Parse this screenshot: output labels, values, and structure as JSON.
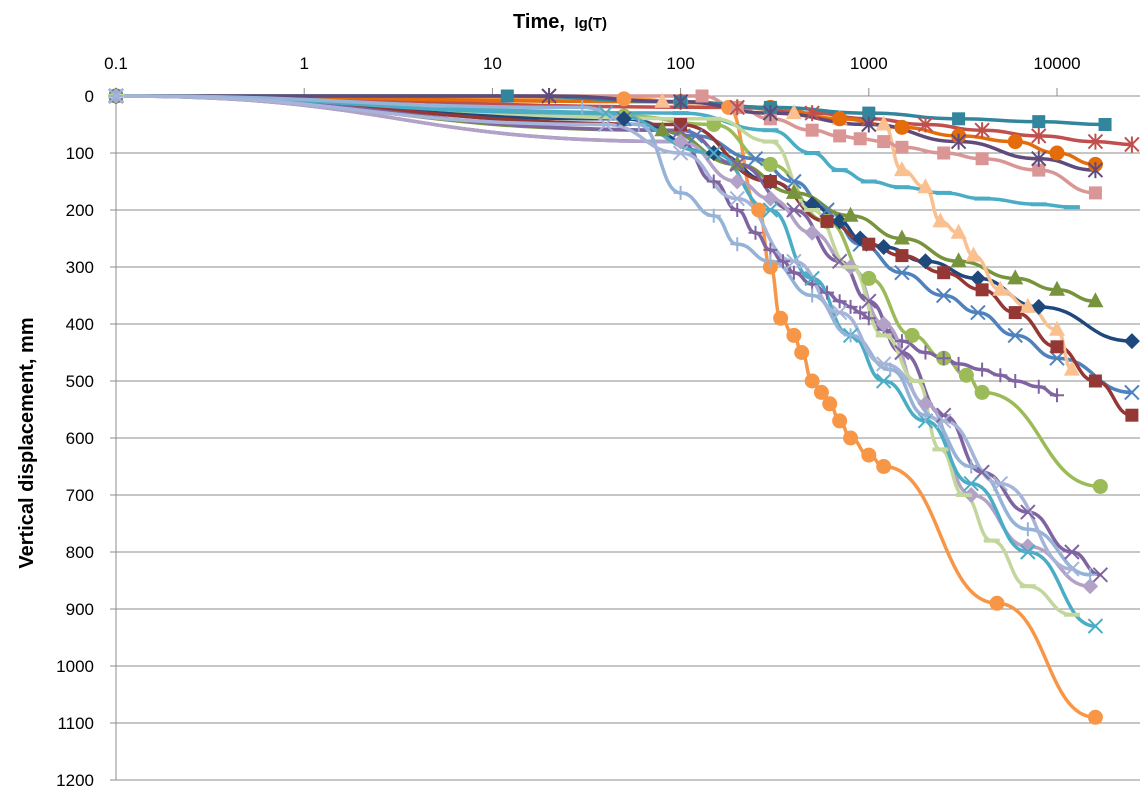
{
  "chart_data": {
    "type": "line",
    "x_scale": "log",
    "x_axis_position": "top",
    "y_inverted": true,
    "xlabel": "Time,",
    "xlabel_suffix": "lg(T)",
    "ylabel": "Vertical displacement, mm",
    "xlim": [
      0.1,
      25000
    ],
    "ylim": [
      0,
      1200
    ],
    "x_ticks": [
      "0.1",
      "1",
      "10",
      "100",
      "1000",
      "10000"
    ],
    "x_tick_values": [
      0.1,
      1,
      10,
      100,
      1000,
      10000
    ],
    "y_ticks": [
      "0",
      "100",
      "200",
      "300",
      "400",
      "500",
      "600",
      "700",
      "800",
      "900",
      "1000",
      "1100",
      "1200"
    ],
    "y_tick_values": [
      0,
      100,
      200,
      300,
      400,
      500,
      600,
      700,
      800,
      900,
      1000,
      1100,
      1200
    ],
    "grid": "horizontal",
    "legend": "none",
    "series": [
      {
        "color": "#f79646",
        "marker": "circle",
        "x": [
          0.1,
          50,
          180,
          260,
          300,
          340,
          400,
          440,
          500,
          560,
          620,
          700,
          800,
          1000,
          1200,
          4800,
          16000
        ],
        "y": [
          0,
          5,
          20,
          200,
          300,
          390,
          420,
          450,
          500,
          520,
          540,
          570,
          600,
          630,
          650,
          890,
          1090
        ]
      },
      {
        "color": "#9bbb59",
        "marker": "circle",
        "x": [
          0.1,
          50,
          150,
          300,
          600,
          1000,
          1700,
          2500,
          3300,
          4000,
          17000
        ],
        "y": [
          0,
          35,
          50,
          120,
          220,
          320,
          420,
          460,
          490,
          520,
          685
        ]
      },
      {
        "color": "#4f81bd",
        "marker": "x",
        "x": [
          0.1,
          50,
          120,
          250,
          400,
          600,
          900,
          1500,
          2500,
          3800,
          6000,
          10000,
          25000
        ],
        "y": [
          0,
          40,
          70,
          110,
          150,
          200,
          260,
          310,
          350,
          380,
          420,
          460,
          520
        ]
      },
      {
        "color": "#1f497d",
        "marker": "diamond",
        "x": [
          0.1,
          50,
          150,
          300,
          500,
          700,
          900,
          1200,
          2000,
          3800,
          8000,
          25000
        ],
        "y": [
          0,
          40,
          100,
          150,
          190,
          220,
          250,
          265,
          290,
          320,
          370,
          430
        ]
      },
      {
        "color": "#953735",
        "marker": "square",
        "x": [
          0.1,
          100,
          300,
          600,
          1000,
          1500,
          2500,
          4000,
          6000,
          10000,
          16000,
          25000
        ],
        "y": [
          0,
          50,
          150,
          220,
          260,
          280,
          310,
          340,
          380,
          440,
          500,
          560
        ]
      },
      {
        "color": "#77933c",
        "marker": "triangle",
        "x": [
          0.1,
          80,
          200,
          400,
          800,
          1500,
          3000,
          6000,
          10000,
          16000
        ],
        "y": [
          0,
          60,
          120,
          170,
          210,
          250,
          290,
          320,
          340,
          360
        ]
      },
      {
        "color": "#fac090",
        "marker": "triangle",
        "x": [
          0.1,
          80,
          200,
          400,
          700,
          1200,
          1500,
          2000,
          2400,
          3000,
          3600,
          5000,
          7000,
          10000,
          12000
        ],
        "y": [
          0,
          10,
          20,
          30,
          40,
          50,
          130,
          160,
          220,
          240,
          280,
          340,
          370,
          410,
          480
        ]
      },
      {
        "color": "#d99694",
        "marker": "square",
        "x": [
          0.1,
          130,
          200,
          300,
          500,
          700,
          900,
          1200,
          1500,
          2500,
          4000,
          8000,
          16000
        ],
        "y": [
          0,
          0,
          20,
          40,
          60,
          70,
          75,
          80,
          90,
          100,
          110,
          130,
          170
        ]
      },
      {
        "color": "#c0504d",
        "marker": "star",
        "x": [
          0.1,
          200,
          500,
          1000,
          2000,
          4000,
          8000,
          16000,
          25000
        ],
        "y": [
          0,
          20,
          30,
          40,
          50,
          60,
          70,
          80,
          85
        ]
      },
      {
        "color": "#e46c0a",
        "marker": "circle",
        "x": [
          0.1,
          100,
          300,
          700,
          1500,
          3000,
          6000,
          10000,
          16000
        ],
        "y": [
          0,
          10,
          20,
          40,
          55,
          70,
          80,
          100,
          120
        ]
      },
      {
        "color": "#31859c",
        "marker": "square",
        "x": [
          0.1,
          12,
          100,
          300,
          1000,
          3000,
          8000,
          18000
        ],
        "y": [
          0,
          0,
          10,
          20,
          30,
          40,
          45,
          50
        ]
      },
      {
        "color": "#4bacc6",
        "marker": "dash",
        "x": [
          0.1,
          100,
          300,
          500,
          700,
          1000,
          1500,
          2500,
          4000,
          8000,
          12000
        ],
        "y": [
          0,
          30,
          60,
          100,
          130,
          150,
          160,
          170,
          180,
          190,
          195
        ]
      },
      {
        "color": "#604a7b",
        "marker": "star",
        "x": [
          0.1,
          20,
          100,
          300,
          1000,
          3000,
          8000,
          16000
        ],
        "y": [
          0,
          0,
          10,
          30,
          50,
          80,
          110,
          130
        ]
      },
      {
        "color": "#8064a2",
        "marker": "plus",
        "x": [
          0.1,
          100,
          150,
          200,
          250,
          300,
          350,
          400,
          500,
          600,
          700,
          800,
          900,
          1000,
          1200,
          1500,
          2000,
          2500,
          3000,
          4000,
          5000,
          6000,
          8000,
          10000
        ],
        "y": [
          0,
          80,
          150,
          200,
          240,
          270,
          290,
          310,
          330,
          345,
          360,
          370,
          380,
          390,
          410,
          430,
          450,
          460,
          470,
          480,
          490,
          500,
          510,
          525
        ]
      },
      {
        "color": "#8064a2",
        "marker": "x",
        "x": [
          0.1,
          100,
          200,
          400,
          700,
          1000,
          1500,
          2500,
          4000,
          7000,
          12000,
          17000
        ],
        "y": [
          0,
          60,
          120,
          200,
          290,
          360,
          450,
          560,
          660,
          730,
          800,
          840
        ]
      },
      {
        "color": "#b3a2c7",
        "marker": "diamond",
        "x": [
          0.1,
          100,
          200,
          300,
          500,
          800,
          1200,
          2000,
          3500,
          7000,
          15000
        ],
        "y": [
          0,
          80,
          150,
          180,
          240,
          300,
          400,
          540,
          700,
          790,
          860
        ]
      },
      {
        "color": "#c3d69b",
        "marker": "dash",
        "x": [
          0.1,
          150,
          300,
          500,
          800,
          1200,
          1800,
          2400,
          3200,
          4500,
          7000,
          12000
        ],
        "y": [
          0,
          40,
          80,
          200,
          300,
          420,
          500,
          620,
          700,
          780,
          860,
          910
        ]
      },
      {
        "color": "#4bacc6",
        "marker": "x",
        "x": [
          0.1,
          40,
          150,
          300,
          500,
          800,
          1200,
          2000,
          3500,
          7000,
          16000
        ],
        "y": [
          0,
          30,
          100,
          200,
          320,
          420,
          500,
          570,
          680,
          800,
          930
        ]
      },
      {
        "color": "#95b3d7",
        "marker": "plus",
        "x": [
          0.1,
          30,
          60,
          100,
          150,
          200,
          300,
          500,
          800,
          1300,
          2000,
          3500,
          7000,
          15000
        ],
        "y": [
          0,
          20,
          50,
          170,
          210,
          260,
          290,
          350,
          420,
          480,
          560,
          650,
          760,
          840
        ]
      },
      {
        "color": "#a5b4d8",
        "marker": "x",
        "x": [
          0.1,
          40,
          100,
          200,
          400,
          700,
          1200,
          2500,
          5000,
          12000
        ],
        "y": [
          0,
          50,
          100,
          180,
          290,
          380,
          470,
          570,
          680,
          830
        ]
      }
    ]
  }
}
